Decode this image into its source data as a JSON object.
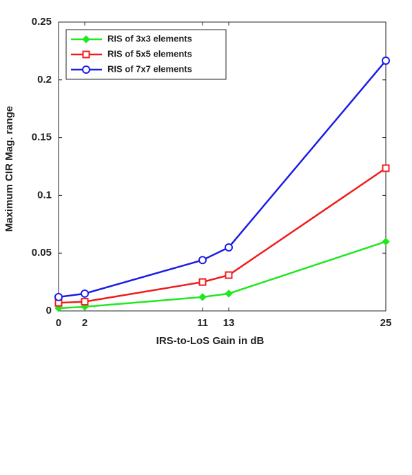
{
  "chart_data": {
    "type": "line",
    "xlabel": "IRS-to-LoS Gain in dB",
    "ylabel": "Maximum CIR Mag. range",
    "x": [
      0,
      2,
      11,
      13,
      25
    ],
    "series": [
      {
        "name": "RIS of 3x3 elements",
        "color": "#1fe81f",
        "marker": "diamond",
        "values": [
          0.0024,
          0.0036,
          0.012,
          0.015,
          0.06
        ]
      },
      {
        "name": "RIS of 5x5 elements",
        "color": "#f01c1c",
        "marker": "square",
        "values": [
          0.007,
          0.008,
          0.025,
          0.031,
          0.1235
        ]
      },
      {
        "name": "RIS of 7x7 elements",
        "color": "#1c1ce8",
        "marker": "circle",
        "values": [
          0.012,
          0.015,
          0.044,
          0.055,
          0.2166
        ]
      }
    ],
    "xlim": [
      0,
      25
    ],
    "xticks": [
      0,
      2,
      11,
      13,
      25
    ],
    "ylim": [
      0,
      0.25
    ],
    "yticks": [
      0,
      0.05,
      0.1,
      0.15,
      0.2,
      0.25
    ],
    "legend": "upper left",
    "grid": false
  }
}
